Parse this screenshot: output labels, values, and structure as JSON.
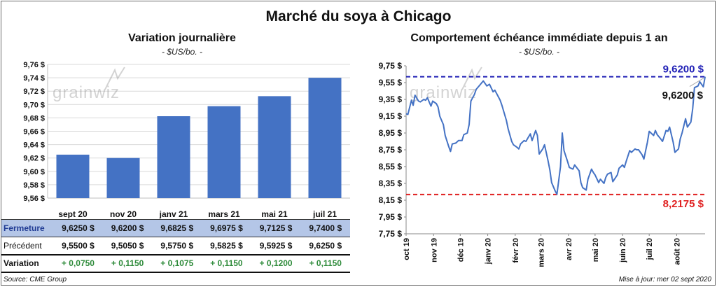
{
  "title": "Marché du soya à Chicago",
  "left": {
    "title": "Variation  journalière",
    "subtitle": "- $US/bo. -"
  },
  "right": {
    "title": "Comportement  échéance immédiate depuis 1 an",
    "subtitle": "- $US/bo. -"
  },
  "watermark": "grainwiz",
  "source": "Source: CME Group",
  "updated": "Mise à jour: mer 02 sept 2020",
  "table": {
    "rows": [
      {
        "label": "Fermeture",
        "values": [
          "9,6250  $",
          "9,6200  $",
          "9,6825  $",
          "9,6975  $",
          "9,7125  $",
          "9,7400  $"
        ]
      },
      {
        "label": "Précédent",
        "values": [
          "9,5500  $",
          "9,5050  $",
          "9,5750  $",
          "9,5825  $",
          "9,5925  $",
          "9,6250  $"
        ]
      },
      {
        "label": "Variation",
        "values": [
          "+ 0,0750",
          "+ 0,1150",
          "+ 0,1075",
          "+ 0,1150",
          "+ 0,1200",
          "+ 0,1150"
        ]
      }
    ]
  },
  "colors": {
    "bar": "#4472c4",
    "line": "#4472c4",
    "high": "#1f1fb5",
    "low": "#e02020",
    "positive": "#2e8b3a"
  },
  "chart_data": [
    {
      "type": "bar",
      "title": "Variation  journalière",
      "categories": [
        "sept 20",
        "nov 20",
        "janv 21",
        "mars 21",
        "mai 21",
        "juil 21"
      ],
      "values": [
        9.625,
        9.62,
        9.6825,
        9.6975,
        9.7125,
        9.74
      ],
      "ylim": [
        9.56,
        9.76
      ],
      "yticks": [
        "9,56 $",
        "9,58 $",
        "9,60 $",
        "9,62 $",
        "9,64 $",
        "9,66 $",
        "9,68 $",
        "9,70 $",
        "9,72 $",
        "9,74 $",
        "9,76 $"
      ],
      "grid": true
    },
    {
      "type": "line",
      "title": "Comportement  échéance immédiate depuis 1 an",
      "x": [
        "2019-10-01",
        "2019-10-03",
        "2019-10-07",
        "2019-10-09",
        "2019-10-11",
        "2019-10-15",
        "2019-10-17",
        "2019-10-21",
        "2019-10-23",
        "2019-10-25",
        "2019-10-29",
        "2019-10-31",
        "2019-11-04",
        "2019-11-06",
        "2019-11-08",
        "2019-11-12",
        "2019-11-14",
        "2019-11-18",
        "2019-11-20",
        "2019-11-22",
        "2019-11-26",
        "2019-11-29",
        "2019-12-03",
        "2019-12-05",
        "2019-12-09",
        "2019-12-11",
        "2019-12-13",
        "2019-12-17",
        "2019-12-19",
        "2019-12-23",
        "2019-12-27",
        "2019-12-31",
        "2020-01-03",
        "2020-01-07",
        "2020-01-09",
        "2020-01-13",
        "2020-01-15",
        "2020-01-17",
        "2020-01-22",
        "2020-01-24",
        "2020-01-28",
        "2020-01-30",
        "2020-02-03",
        "2020-02-05",
        "2020-02-07",
        "2020-02-11",
        "2020-02-13",
        "2020-02-18",
        "2020-02-20",
        "2020-02-24",
        "2020-02-26",
        "2020-02-28",
        "2020-03-03",
        "2020-03-05",
        "2020-03-09",
        "2020-03-11",
        "2020-03-13",
        "2020-03-17",
        "2020-03-19",
        "2020-03-23",
        "2020-03-25",
        "2020-03-27",
        "2020-03-31",
        "2020-04-02",
        "2020-04-06",
        "2020-04-08",
        "2020-04-13",
        "2020-04-15",
        "2020-04-17",
        "2020-04-21",
        "2020-04-23",
        "2020-04-27",
        "2020-04-29",
        "2020-05-01",
        "2020-05-05",
        "2020-05-07",
        "2020-05-11",
        "2020-05-13",
        "2020-05-15",
        "2020-05-19",
        "2020-05-21",
        "2020-05-26",
        "2020-05-28",
        "2020-06-01",
        "2020-06-03",
        "2020-06-05",
        "2020-06-09",
        "2020-06-11",
        "2020-06-15",
        "2020-06-17",
        "2020-06-19",
        "2020-06-23",
        "2020-06-25",
        "2020-06-29",
        "2020-07-01",
        "2020-07-06",
        "2020-07-08",
        "2020-07-10",
        "2020-07-14",
        "2020-07-16",
        "2020-07-20",
        "2020-07-22",
        "2020-07-24",
        "2020-07-28",
        "2020-07-30",
        "2020-08-03",
        "2020-08-05",
        "2020-08-07",
        "2020-08-11",
        "2020-08-13",
        "2020-08-17",
        "2020-08-19",
        "2020-08-21",
        "2020-08-25",
        "2020-08-27",
        "2020-08-31",
        "2020-09-02"
      ],
      "values": [
        9.18,
        9.17,
        9.34,
        9.28,
        9.4,
        9.33,
        9.32,
        9.35,
        9.34,
        9.37,
        9.27,
        9.33,
        9.3,
        9.26,
        9.15,
        9.05,
        8.92,
        8.79,
        8.73,
        8.82,
        8.83,
        8.86,
        8.86,
        8.93,
        8.95,
        9.05,
        9.33,
        9.41,
        9.47,
        9.52,
        9.57,
        9.51,
        9.53,
        9.44,
        9.46,
        9.38,
        9.34,
        9.28,
        9.1,
        9.0,
        8.85,
        8.81,
        8.78,
        8.76,
        8.82,
        8.86,
        8.85,
        8.94,
        8.86,
        8.98,
        8.92,
        8.7,
        8.76,
        8.81,
        8.62,
        8.51,
        8.36,
        8.26,
        8.22,
        8.55,
        8.95,
        8.74,
        8.61,
        8.54,
        8.52,
        8.57,
        8.5,
        8.36,
        8.3,
        8.27,
        8.4,
        8.52,
        8.48,
        8.45,
        8.36,
        8.4,
        8.35,
        8.42,
        8.46,
        8.48,
        8.37,
        8.45,
        8.53,
        8.57,
        8.54,
        8.61,
        8.74,
        8.72,
        8.76,
        8.75,
        8.75,
        8.69,
        8.64,
        8.84,
        8.97,
        8.92,
        8.98,
        8.93,
        8.88,
        8.85,
        8.98,
        8.97,
        9.02,
        8.84,
        8.72,
        8.76,
        8.88,
        8.95,
        9.12,
        9.02,
        9.08,
        9.24,
        9.49,
        9.51,
        9.56,
        9.5,
        9.62
      ],
      "xticks": [
        "oct 19",
        "nov 19",
        "déc 19",
        "janv 20",
        "févr 20",
        "mars 20",
        "avr 20",
        "mai 20",
        "juin 20",
        "juil 20",
        "août 20"
      ],
      "ylim": [
        7.75,
        9.75
      ],
      "yticks": [
        "7,75 $",
        "7,95 $",
        "8,15 $",
        "8,35 $",
        "8,55 $",
        "8,75 $",
        "8,95 $",
        "9,15 $",
        "9,35 $",
        "9,55 $",
        "9,75 $"
      ],
      "high": {
        "value": 9.62,
        "label": "9,6200  $"
      },
      "low": {
        "value": 8.2175,
        "label": "8,2175  $"
      },
      "last": {
        "value": 9.62,
        "label": "9,6200 $"
      },
      "grid": false
    }
  ]
}
